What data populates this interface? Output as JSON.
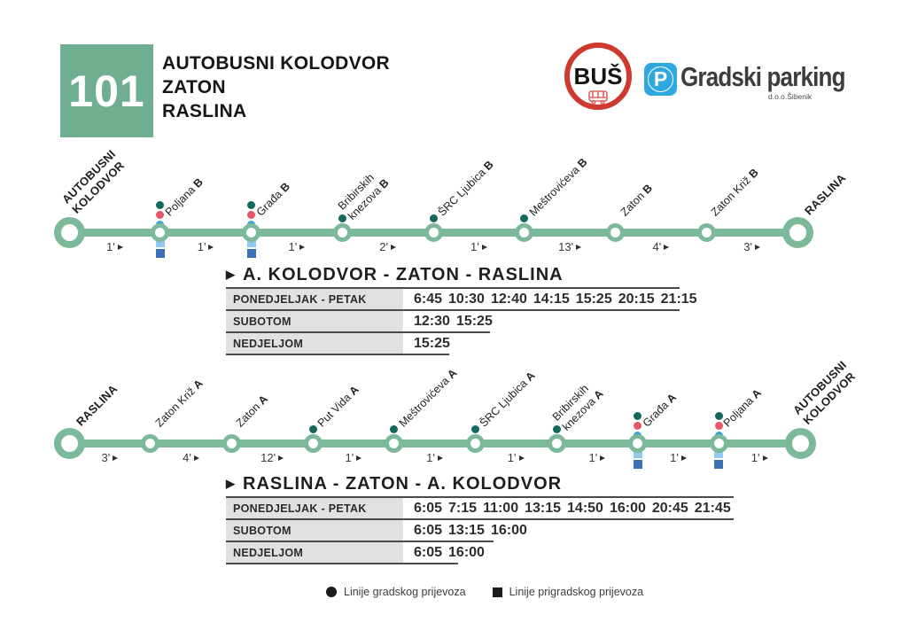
{
  "header": {
    "route_number": "101",
    "title_lines": [
      "AUTOBUSNI KOLODVOR",
      "ZATON",
      "RASLINA"
    ],
    "bus_logo_text": "BUŠ",
    "parking": {
      "p": "P",
      "name": "Gradski parking",
      "sub": "d.o.o.Šibenik"
    }
  },
  "colors": {
    "badge_green": "#6FAE90",
    "line_green": "#7CB99B",
    "dot_teal": "#16685E",
    "dot_red": "#E65964",
    "dot_blue": "#3BA1DC",
    "square_light_blue": "#8FC9EC",
    "square_dark_blue": "#3C70B5",
    "logo_red": "#CE3A30",
    "logo_blue": "#2FA8DF",
    "table_label_bg": "#E1E1E1",
    "rule_gray": "#4A4A4A"
  },
  "route_lines": [
    {
      "direction": "outbound",
      "stops": [
        {
          "label": [
            "AUTOBUSNI",
            "KOLODVOR"
          ],
          "terminal": true
        },
        {
          "label": [
            "Poljana"
          ],
          "suffix": "B",
          "dots": [
            "teal",
            "red",
            "blue"
          ],
          "squares": [
            "light",
            "dark"
          ]
        },
        {
          "label": [
            "Građa"
          ],
          "suffix": "B",
          "dots": [
            "teal",
            "red",
            "blue"
          ],
          "squares": [
            "light",
            "dark"
          ]
        },
        {
          "label": [
            "Bribirskih",
            "knezova"
          ],
          "suffix": "B",
          "dots": [
            "teal"
          ]
        },
        {
          "label": [
            "ŠRC Ljubica"
          ],
          "suffix": "B",
          "dots": [
            "teal"
          ]
        },
        {
          "label": [
            "Meštrovićeva"
          ],
          "suffix": "B",
          "dots": [
            "teal"
          ]
        },
        {
          "label": [
            "Zaton"
          ],
          "suffix": "B"
        },
        {
          "label": [
            "Zaton Križ"
          ],
          "suffix": "B"
        },
        {
          "label": [
            "RASLINA"
          ],
          "terminal": true
        }
      ],
      "segments": [
        "1'",
        "1'",
        "1'",
        "2'",
        "1'",
        "13'",
        "4'",
        "3'"
      ]
    },
    {
      "direction": "inbound",
      "stops": [
        {
          "label": [
            "RASLINA"
          ],
          "terminal": true
        },
        {
          "label": [
            "Zaton Križ"
          ],
          "suffix": "A"
        },
        {
          "label": [
            "Zaton"
          ],
          "suffix": "A"
        },
        {
          "label": [
            "Put Vida"
          ],
          "suffix": "A",
          "dots": [
            "teal"
          ]
        },
        {
          "label": [
            "Meštrovićeva"
          ],
          "suffix": "A",
          "dots": [
            "teal"
          ]
        },
        {
          "label": [
            "ŠRC Ljubica"
          ],
          "suffix": "A",
          "dots": [
            "teal"
          ]
        },
        {
          "label": [
            "Bribirskih",
            "knezova"
          ],
          "suffix": "A",
          "dots": [
            "teal"
          ]
        },
        {
          "label": [
            "Građa"
          ],
          "suffix": "A",
          "dots": [
            "teal",
            "red",
            "blue"
          ],
          "squares": [
            "light",
            "dark"
          ]
        },
        {
          "label": [
            "Poljana"
          ],
          "suffix": "A",
          "dots": [
            "teal",
            "red",
            "blue"
          ],
          "squares": [
            "light",
            "dark"
          ]
        },
        {
          "label": [
            "AUTOBUSNI",
            "KOLODVOR"
          ],
          "terminal": true
        }
      ],
      "segments": [
        "3'",
        "4'",
        "12'",
        "1'",
        "1'",
        "1'",
        "1'",
        "1'",
        "1'"
      ]
    }
  ],
  "timetables": [
    {
      "title": "A. KOLODVOR - ZATON - RASLINA",
      "rows": [
        {
          "label": "PONEDJELJAK - PETAK",
          "times": [
            "6:45",
            "10:30",
            "12:40",
            "14:15",
            "15:25",
            "20:15",
            "21:15"
          ]
        },
        {
          "label": "SUBOTOM",
          "times": [
            "12:30",
            "15:25"
          ]
        },
        {
          "label": "NEDJELJOM",
          "times": [
            "15:25"
          ]
        }
      ]
    },
    {
      "title": "RASLINA - ZATON - A. KOLODVOR",
      "rows": [
        {
          "label": "PONEDJELJAK - PETAK",
          "times": [
            "6:05",
            "7:15",
            "11:00",
            "13:15",
            "14:50",
            "16:00",
            "20:45",
            "21:45"
          ]
        },
        {
          "label": "SUBOTOM",
          "times": [
            "6:05",
            "13:15",
            "16:00"
          ]
        },
        {
          "label": "NEDJELJOM",
          "times": [
            "6:05",
            "16:00"
          ]
        }
      ]
    }
  ],
  "legend": [
    {
      "symbol": "circle",
      "label": "Linije gradskog prijevoza"
    },
    {
      "symbol": "square",
      "label": "Linije prigradskog prijevoza"
    }
  ]
}
